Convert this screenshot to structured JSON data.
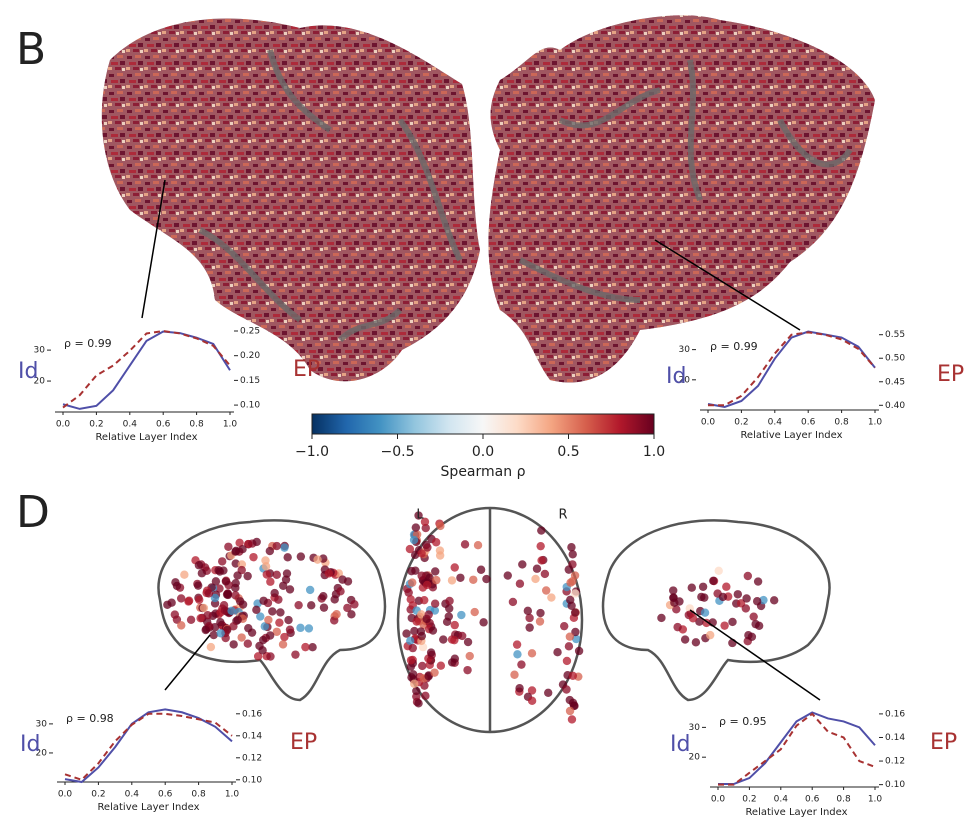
{
  "panels": [
    "B",
    "D"
  ],
  "brain_labels": [
    "L",
    "R"
  ],
  "chart_data": [
    {
      "type": "colorbar",
      "xlabel": "Spearman ρ",
      "colors": [
        "#053061",
        "#2166ac",
        "#4393c3",
        "#92c5de",
        "#d1e5f0",
        "#f7f7f7",
        "#fddbc7",
        "#f4a582",
        "#d6604d",
        "#b2182b",
        "#67001f"
      ],
      "xlim": [
        -1,
        1
      ],
      "xticks": [
        {
          "value": -1,
          "label": "−1.0"
        },
        {
          "value": -0.5,
          "label": "−0.5"
        },
        {
          "value": 0,
          "label": "0.0"
        },
        0.5,
        {
          "value": 1,
          "label": "1.0"
        }
      ]
    },
    {
      "type": "line",
      "annotation": "ρ = 0.99",
      "xlabel": "Relative Layer Index",
      "x": [
        0,
        0.1,
        0.2,
        0.3,
        0.4,
        0.5,
        0.6,
        0.7,
        0.8,
        0.9,
        1
      ],
      "xlim": [
        0,
        1
      ],
      "xticks": [
        {
          "value": 0,
          "label": "0.0"
        },
        0.2,
        0.4,
        0.6,
        0.8,
        {
          "value": 1,
          "label": "1.0"
        }
      ],
      "ylim": [
        10,
        36.5
      ],
      "yticks": [
        20,
        30
      ],
      "y2lim": [
        0.086,
        0.252
      ],
      "y2ticks": [
        {
          "value": 0.1,
          "label": "0.10"
        },
        0.15,
        {
          "value": 0.2,
          "label": "0.20"
        },
        0.25
      ],
      "series": [
        {
          "name": "Id",
          "color": "#4f4fa8",
          "linestyle": "solid",
          "values": [
            12.5,
            11,
            12,
            17,
            25,
            33,
            36,
            35.5,
            34,
            32,
            23.5
          ]
        },
        {
          "name": "EP",
          "color": "#a83232",
          "linestyle": "dashed",
          "axis": "y2",
          "values": [
            0.095,
            0.12,
            0.16,
            0.18,
            0.21,
            0.245,
            0.25,
            0.245,
            0.235,
            0.22,
            0.18
          ]
        }
      ]
    },
    {
      "type": "line",
      "annotation": "ρ = 0.99",
      "xlabel": "Relative Layer Index",
      "x": [
        0,
        0.1,
        0.2,
        0.3,
        0.4,
        0.5,
        0.6,
        0.7,
        0.8,
        0.9,
        1
      ],
      "xlim": [
        0,
        1
      ],
      "xticks": [
        {
          "value": 0,
          "label": "0.0"
        },
        0.2,
        0.4,
        0.6,
        0.8,
        {
          "value": 1,
          "label": "1.0"
        }
      ],
      "ylim": [
        10,
        36.5
      ],
      "yticks": [
        20,
        30
      ],
      "y2lim": [
        0.39,
        0.56
      ],
      "y2ticks": [
        {
          "value": 0.4,
          "label": "0.40"
        },
        0.45,
        {
          "value": 0.5,
          "label": "0.50"
        },
        0.55
      ],
      "series": [
        {
          "name": "Id",
          "color": "#4f4fa8",
          "linestyle": "solid",
          "values": [
            12,
            11,
            13,
            18,
            27,
            34,
            36,
            35,
            34,
            31,
            24
          ]
        },
        {
          "name": "EP",
          "color": "#a83232",
          "linestyle": "dashed",
          "axis": "y2",
          "values": [
            0.4,
            0.4,
            0.42,
            0.46,
            0.51,
            0.55,
            0.555,
            0.55,
            0.54,
            0.52,
            0.48
          ]
        }
      ]
    },
    {
      "type": "line",
      "annotation": "ρ = 0.98",
      "xlabel": "Relative Layer Index",
      "x": [
        0,
        0.1,
        0.2,
        0.3,
        0.4,
        0.5,
        0.6,
        0.7,
        0.8,
        0.9,
        1
      ],
      "xlim": [
        0,
        1
      ],
      "xticks": [
        {
          "value": 0,
          "label": "0.0"
        },
        0.2,
        0.4,
        0.6,
        0.8,
        {
          "value": 1,
          "label": "1.0"
        }
      ],
      "ylim": [
        10,
        36.5
      ],
      "yticks": [
        20,
        30
      ],
      "y2lim": [
        0.098,
        0.168
      ],
      "y2ticks": [
        {
          "value": 0.1,
          "label": "0.10"
        },
        0.12,
        0.14,
        0.16
      ],
      "series": [
        {
          "name": "Id",
          "color": "#4f4fa8",
          "linestyle": "solid",
          "values": [
            11,
            10,
            15,
            22,
            30,
            34,
            35,
            34,
            32,
            29,
            24
          ]
        },
        {
          "name": "EP",
          "color": "#a83232",
          "linestyle": "dashed",
          "axis": "y2",
          "values": [
            0.105,
            0.1,
            0.115,
            0.135,
            0.15,
            0.16,
            0.16,
            0.158,
            0.155,
            0.152,
            0.14
          ]
        }
      ]
    },
    {
      "type": "line",
      "annotation": "ρ = 0.95",
      "xlabel": "Relative Layer Index",
      "x": [
        0,
        0.1,
        0.2,
        0.3,
        0.4,
        0.5,
        0.6,
        0.7,
        0.8,
        0.9,
        1
      ],
      "xlim": [
        0,
        1
      ],
      "xticks": [
        {
          "value": 0,
          "label": "0.0"
        },
        0.2,
        0.4,
        0.6,
        0.8,
        {
          "value": 1,
          "label": "1.0"
        }
      ],
      "ylim": [
        10,
        36.5
      ],
      "yticks": [
        20,
        30
      ],
      "y2lim": [
        0.098,
        0.165
      ],
      "y2ticks": [
        {
          "value": 0.1,
          "label": "0.10"
        },
        0.12,
        0.14,
        0.16
      ],
      "series": [
        {
          "name": "Id",
          "color": "#4f4fa8",
          "linestyle": "solid",
          "values": [
            11,
            11,
            13,
            18,
            25,
            32,
            35,
            33,
            32,
            30,
            24
          ]
        },
        {
          "name": "EP",
          "color": "#a83232",
          "linestyle": "dashed",
          "axis": "y2",
          "values": [
            0.1,
            0.1,
            0.11,
            0.12,
            0.13,
            0.15,
            0.16,
            0.145,
            0.14,
            0.12,
            0.115
          ]
        }
      ]
    }
  ]
}
